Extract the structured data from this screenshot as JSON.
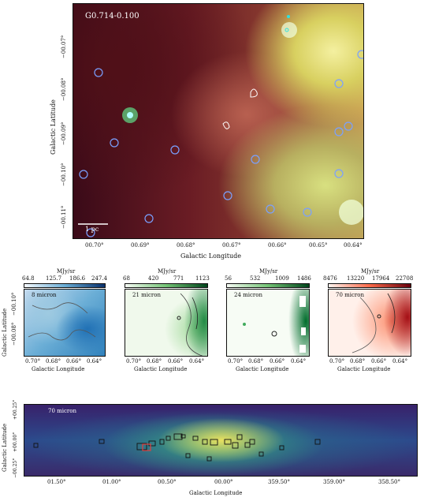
{
  "main_panel": {
    "source_label": "G0.714-0.100",
    "ylabel": "Galactic Latitude",
    "xlabel": "Galactic Longitude",
    "scalebar_label": "1 pc",
    "x_ticks": [
      "00.70°",
      "00.69°",
      "00.68°",
      "00.67°",
      "00.66°",
      "00.65°",
      "00.64°"
    ],
    "y_ticks": [
      "−00.07°",
      "−00.08°",
      "−00.09°",
      "−00.10°",
      "−00.11°"
    ]
  },
  "small_panels": [
    {
      "label": "8 micron",
      "unit": "MJy/sr",
      "cbar_ticks": [
        "64.8",
        "125.7",
        "186.6",
        "247.4"
      ],
      "cbar_from": "#ffffff",
      "cbar_to": "#08306b"
    },
    {
      "label": "21 micron",
      "unit": "MJy/sr",
      "cbar_ticks": [
        "68",
        "420",
        "771",
        "1123"
      ],
      "cbar_from": "#ffffff",
      "cbar_to": "#00441b"
    },
    {
      "label": "24 micron",
      "unit": "MJy/sr",
      "cbar_ticks": [
        "56",
        "532",
        "1009",
        "1486"
      ],
      "cbar_from": "#ffffff",
      "cbar_to": "#00441b"
    },
    {
      "label": "70 micron",
      "unit": "MJy/sr",
      "cbar_ticks": [
        "8476",
        "13220",
        "17964",
        "22708"
      ],
      "cbar_from": "#fff5f0",
      "cbar_to": "#67000d"
    }
  ],
  "small_common": {
    "xlabel": "Galactic Longitude",
    "ylabel": "Galactic Latitude",
    "x_ticks": [
      "0.70°",
      "0.68°",
      "0.66°",
      "0.64°"
    ],
    "y_ticks": [
      "−00.08°",
      "−00.10°"
    ]
  },
  "bottom_panel": {
    "label": "70 micron",
    "xlabel": "Galactic Longitude",
    "ylabel": "Galactic Latitude",
    "x_ticks": [
      "01.50°",
      "01.00°",
      "00.50°",
      "00.00°",
      "359.50°",
      "359.00°",
      "358.50°"
    ],
    "y_ticks": [
      "+00.25°",
      "+00.00°",
      "−00.25°"
    ]
  }
}
